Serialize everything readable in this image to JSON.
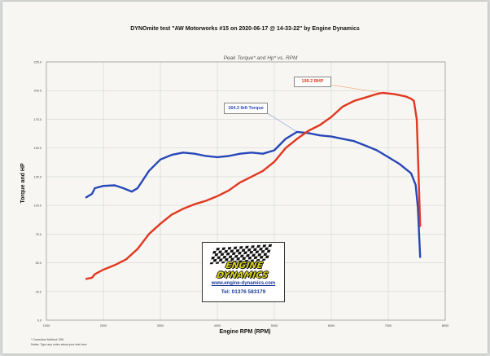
{
  "header": {
    "title": "DYNOmite test \"AW Motorworks #15 on 2020-06-17 @ 14-33-22\" by Engine Dynamics"
  },
  "footnotes": {
    "line1": "* Correction Method: DIN",
    "line2": "Notes: Type any notes about your test here"
  },
  "logo": {
    "wordmark": "ENGINE DYNAMICS",
    "website": "www.engine-dynamics.com",
    "phone": "Tel: 01376 583179"
  },
  "colors": {
    "torque": "#2747b8",
    "power": "#e2371f",
    "grid": "#cfd6d3"
  },
  "chart_data": {
    "type": "line",
    "title": "",
    "subtitle": "Peak Torque* and Hp* vs. RPM",
    "xlabel": "Engine RPM (RPM)",
    "ylabel": "Torque and HP",
    "xlim": [
      1000,
      8000
    ],
    "ylim": [
      0,
      225
    ],
    "x_ticks": [
      "1000",
      "2000",
      "3000",
      "4000",
      "5000",
      "6000",
      "7000",
      "8000"
    ],
    "y_ticks": [
      "0.0",
      "25.0",
      "50.0",
      "75.0",
      "100.0",
      "125.0",
      "150.0",
      "175.0",
      "200.0",
      "225.0"
    ],
    "grid": true,
    "annotations": [
      {
        "text": "199.2 BHP",
        "series": "power"
      },
      {
        "text": "164.3 lbft Torque",
        "series": "torque"
      }
    ],
    "series": [
      {
        "key": "torque",
        "points": [
          [
            1700,
            107
          ],
          [
            1800,
            110
          ],
          [
            1850,
            115
          ],
          [
            2000,
            117
          ],
          [
            2200,
            117.5
          ],
          [
            2350,
            115
          ],
          [
            2500,
            112
          ],
          [
            2600,
            115
          ],
          [
            2800,
            130
          ],
          [
            3000,
            140
          ],
          [
            3200,
            144
          ],
          [
            3400,
            146
          ],
          [
            3600,
            145
          ],
          [
            3800,
            143
          ],
          [
            4000,
            142
          ],
          [
            4200,
            143
          ],
          [
            4400,
            145
          ],
          [
            4600,
            146
          ],
          [
            4800,
            145
          ],
          [
            5000,
            148
          ],
          [
            5200,
            158
          ],
          [
            5400,
            164
          ],
          [
            5600,
            163
          ],
          [
            5800,
            161
          ],
          [
            6000,
            160
          ],
          [
            6200,
            158
          ],
          [
            6400,
            156
          ],
          [
            6600,
            152
          ],
          [
            6800,
            148
          ],
          [
            7000,
            142
          ],
          [
            7200,
            136
          ],
          [
            7400,
            128
          ],
          [
            7480,
            118
          ],
          [
            7520,
            98
          ],
          [
            7560,
            55
          ]
        ]
      },
      {
        "key": "power",
        "points": [
          [
            1700,
            36
          ],
          [
            1800,
            37
          ],
          [
            1850,
            40
          ],
          [
            2000,
            44
          ],
          [
            2200,
            48
          ],
          [
            2400,
            53
          ],
          [
            2600,
            62
          ],
          [
            2800,
            75
          ],
          [
            3000,
            84
          ],
          [
            3200,
            92
          ],
          [
            3400,
            97
          ],
          [
            3600,
            101
          ],
          [
            3800,
            104
          ],
          [
            4000,
            108
          ],
          [
            4200,
            113
          ],
          [
            4400,
            120
          ],
          [
            4600,
            125
          ],
          [
            4800,
            130
          ],
          [
            5000,
            138
          ],
          [
            5200,
            150
          ],
          [
            5400,
            158
          ],
          [
            5600,
            165
          ],
          [
            5800,
            170
          ],
          [
            6000,
            177
          ],
          [
            6200,
            186
          ],
          [
            6400,
            191
          ],
          [
            6600,
            194
          ],
          [
            6800,
            197
          ],
          [
            6900,
            198
          ],
          [
            7100,
            197
          ],
          [
            7300,
            195
          ],
          [
            7400,
            193
          ],
          [
            7450,
            191
          ],
          [
            7500,
            175
          ],
          [
            7530,
            130
          ],
          [
            7560,
            82
          ]
        ]
      }
    ]
  }
}
